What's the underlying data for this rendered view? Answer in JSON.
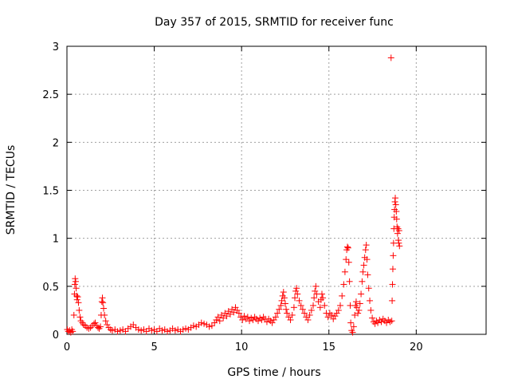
{
  "chart_data": {
    "type": "scatter",
    "title": "Day 357 of 2015, SRMTID for receiver func",
    "xlabel": "GPS time / hours",
    "ylabel": "SRMTID / TECUs",
    "xlim": [
      0,
      24
    ],
    "ylim": [
      0,
      3
    ],
    "xticks": [
      0,
      5,
      10,
      15,
      20
    ],
    "yticks": [
      0,
      0.5,
      1,
      1.5,
      2,
      2.5,
      3
    ],
    "xtick_labels": [
      "0",
      "5",
      "10",
      "15",
      "20"
    ],
    "ytick_labels": [
      "0",
      "0.5",
      "1",
      "1.5",
      "2",
      "2.5",
      "3"
    ],
    "grid": true,
    "marker": "plus",
    "color": "#ff0000",
    "series": [
      {
        "name": "SRMTID",
        "points": [
          [
            0.02,
            0.05
          ],
          [
            0.08,
            0.03
          ],
          [
            0.15,
            0.04
          ],
          [
            0.22,
            0.02
          ],
          [
            0.28,
            0.05
          ],
          [
            0.33,
            0.03
          ],
          [
            0.4,
            0.2
          ],
          [
            0.43,
            0.42
          ],
          [
            0.45,
            0.52
          ],
          [
            0.47,
            0.58
          ],
          [
            0.5,
            0.55
          ],
          [
            0.53,
            0.48
          ],
          [
            0.56,
            0.4
          ],
          [
            0.58,
            0.36
          ],
          [
            0.62,
            0.39
          ],
          [
            0.66,
            0.33
          ],
          [
            0.7,
            0.25
          ],
          [
            0.75,
            0.18
          ],
          [
            0.8,
            0.14
          ],
          [
            0.88,
            0.12
          ],
          [
            0.95,
            0.1
          ],
          [
            1.05,
            0.09
          ],
          [
            1.15,
            0.07
          ],
          [
            1.25,
            0.06
          ],
          [
            1.35,
            0.07
          ],
          [
            1.45,
            0.09
          ],
          [
            1.55,
            0.11
          ],
          [
            1.62,
            0.12
          ],
          [
            1.7,
            0.09
          ],
          [
            1.78,
            0.07
          ],
          [
            1.85,
            0.06
          ],
          [
            1.92,
            0.08
          ],
          [
            1.96,
            0.2
          ],
          [
            2.0,
            0.34
          ],
          [
            2.03,
            0.38
          ],
          [
            2.06,
            0.33
          ],
          [
            2.1,
            0.27
          ],
          [
            2.15,
            0.2
          ],
          [
            2.22,
            0.14
          ],
          [
            2.3,
            0.1
          ],
          [
            2.4,
            0.07
          ],
          [
            2.5,
            0.05
          ],
          [
            2.6,
            0.04
          ],
          [
            2.75,
            0.05
          ],
          [
            2.9,
            0.03
          ],
          [
            3.05,
            0.04
          ],
          [
            3.2,
            0.05
          ],
          [
            3.35,
            0.03
          ],
          [
            3.5,
            0.06
          ],
          [
            3.65,
            0.08
          ],
          [
            3.8,
            0.1
          ],
          [
            3.95,
            0.07
          ],
          [
            4.1,
            0.05
          ],
          [
            4.25,
            0.04
          ],
          [
            4.4,
            0.05
          ],
          [
            4.55,
            0.03
          ],
          [
            4.7,
            0.06
          ],
          [
            4.85,
            0.04
          ],
          [
            5.0,
            0.05
          ],
          [
            5.15,
            0.03
          ],
          [
            5.3,
            0.06
          ],
          [
            5.45,
            0.04
          ],
          [
            5.6,
            0.05
          ],
          [
            5.75,
            0.03
          ],
          [
            5.9,
            0.04
          ],
          [
            6.05,
            0.06
          ],
          [
            6.2,
            0.04
          ],
          [
            6.35,
            0.05
          ],
          [
            6.5,
            0.03
          ],
          [
            6.65,
            0.05
          ],
          [
            6.8,
            0.06
          ],
          [
            6.95,
            0.05
          ],
          [
            7.1,
            0.07
          ],
          [
            7.25,
            0.09
          ],
          [
            7.4,
            0.08
          ],
          [
            7.55,
            0.1
          ],
          [
            7.7,
            0.12
          ],
          [
            7.85,
            0.11
          ],
          [
            8.0,
            0.1
          ],
          [
            8.15,
            0.08
          ],
          [
            8.3,
            0.09
          ],
          [
            8.45,
            0.12
          ],
          [
            8.55,
            0.15
          ],
          [
            8.65,
            0.18
          ],
          [
            8.75,
            0.14
          ],
          [
            8.85,
            0.2
          ],
          [
            8.95,
            0.17
          ],
          [
            9.05,
            0.22
          ],
          [
            9.15,
            0.19
          ],
          [
            9.25,
            0.24
          ],
          [
            9.35,
            0.21
          ],
          [
            9.45,
            0.26
          ],
          [
            9.55,
            0.23
          ],
          [
            9.65,
            0.28
          ],
          [
            9.75,
            0.25
          ],
          [
            9.85,
            0.22
          ],
          [
            9.95,
            0.18
          ],
          [
            10.05,
            0.15
          ],
          [
            10.15,
            0.19
          ],
          [
            10.25,
            0.16
          ],
          [
            10.35,
            0.18
          ],
          [
            10.45,
            0.14
          ],
          [
            10.55,
            0.17
          ],
          [
            10.65,
            0.15
          ],
          [
            10.75,
            0.18
          ],
          [
            10.85,
            0.16
          ],
          [
            10.95,
            0.14
          ],
          [
            11.05,
            0.17
          ],
          [
            11.15,
            0.15
          ],
          [
            11.25,
            0.18
          ],
          [
            11.35,
            0.16
          ],
          [
            11.45,
            0.13
          ],
          [
            11.55,
            0.16
          ],
          [
            11.65,
            0.14
          ],
          [
            11.75,
            0.12
          ],
          [
            11.85,
            0.15
          ],
          [
            11.95,
            0.18
          ],
          [
            12.05,
            0.22
          ],
          [
            12.15,
            0.26
          ],
          [
            12.25,
            0.3
          ],
          [
            12.3,
            0.35
          ],
          [
            12.35,
            0.4
          ],
          [
            12.4,
            0.44
          ],
          [
            12.45,
            0.38
          ],
          [
            12.5,
            0.32
          ],
          [
            12.55,
            0.26
          ],
          [
            12.6,
            0.22
          ],
          [
            12.7,
            0.18
          ],
          [
            12.8,
            0.15
          ],
          [
            12.9,
            0.2
          ],
          [
            13.0,
            0.28
          ],
          [
            13.05,
            0.38
          ],
          [
            13.1,
            0.45
          ],
          [
            13.15,
            0.48
          ],
          [
            13.2,
            0.42
          ],
          [
            13.3,
            0.35
          ],
          [
            13.4,
            0.3
          ],
          [
            13.5,
            0.26
          ],
          [
            13.6,
            0.22
          ],
          [
            13.7,
            0.18
          ],
          [
            13.8,
            0.15
          ],
          [
            13.9,
            0.2
          ],
          [
            14.0,
            0.25
          ],
          [
            14.1,
            0.3
          ],
          [
            14.15,
            0.38
          ],
          [
            14.2,
            0.45
          ],
          [
            14.25,
            0.5
          ],
          [
            14.3,
            0.42
          ],
          [
            14.4,
            0.34
          ],
          [
            14.5,
            0.28
          ],
          [
            14.55,
            0.36
          ],
          [
            14.6,
            0.42
          ],
          [
            14.65,
            0.38
          ],
          [
            14.75,
            0.3
          ],
          [
            14.85,
            0.22
          ],
          [
            14.95,
            0.18
          ],
          [
            15.05,
            0.22
          ],
          [
            15.15,
            0.2
          ],
          [
            15.25,
            0.16
          ],
          [
            15.35,
            0.19
          ],
          [
            15.45,
            0.22
          ],
          [
            15.55,
            0.25
          ],
          [
            15.65,
            0.3
          ],
          [
            15.75,
            0.4
          ],
          [
            15.85,
            0.52
          ],
          [
            15.92,
            0.65
          ],
          [
            15.98,
            0.78
          ],
          [
            16.02,
            0.88
          ],
          [
            16.06,
            0.91
          ],
          [
            16.1,
            0.9
          ],
          [
            16.14,
            0.75
          ],
          [
            16.18,
            0.55
          ],
          [
            16.22,
            0.3
          ],
          [
            16.25,
            0.12
          ],
          [
            16.3,
            0.04
          ],
          [
            16.36,
            0.02
          ],
          [
            16.42,
            0.08
          ],
          [
            16.48,
            0.2
          ],
          [
            16.52,
            0.3
          ],
          [
            16.56,
            0.34
          ],
          [
            16.6,
            0.28
          ],
          [
            16.66,
            0.22
          ],
          [
            16.72,
            0.25
          ],
          [
            16.78,
            0.32
          ],
          [
            16.84,
            0.42
          ],
          [
            16.9,
            0.55
          ],
          [
            16.95,
            0.65
          ],
          [
            17.0,
            0.72
          ],
          [
            17.05,
            0.8
          ],
          [
            17.1,
            0.88
          ],
          [
            17.14,
            0.93
          ],
          [
            17.18,
            0.78
          ],
          [
            17.22,
            0.62
          ],
          [
            17.28,
            0.48
          ],
          [
            17.34,
            0.35
          ],
          [
            17.4,
            0.25
          ],
          [
            17.48,
            0.17
          ],
          [
            17.56,
            0.13
          ],
          [
            17.64,
            0.11
          ],
          [
            17.72,
            0.14
          ],
          [
            17.8,
            0.12
          ],
          [
            17.9,
            0.15
          ],
          [
            18.0,
            0.13
          ],
          [
            18.1,
            0.16
          ],
          [
            18.2,
            0.14
          ],
          [
            18.3,
            0.12
          ],
          [
            18.4,
            0.15
          ],
          [
            18.5,
            0.13
          ],
          [
            18.56,
            2.88
          ],
          [
            18.6,
            0.14
          ],
          [
            18.62,
            0.35
          ],
          [
            18.64,
            0.52
          ],
          [
            18.66,
            0.68
          ],
          [
            18.68,
            0.82
          ],
          [
            18.7,
            0.95
          ],
          [
            18.72,
            1.1
          ],
          [
            18.74,
            1.22
          ],
          [
            18.76,
            1.3
          ],
          [
            18.78,
            1.38
          ],
          [
            18.8,
            1.42
          ],
          [
            18.83,
            1.35
          ],
          [
            18.86,
            1.28
          ],
          [
            18.88,
            1.2
          ],
          [
            18.9,
            1.12
          ],
          [
            18.93,
            1.05
          ],
          [
            18.96,
            1.1
          ],
          [
            18.98,
            0.98
          ],
          [
            19.0,
            0.95
          ],
          [
            19.02,
            1.08
          ],
          [
            19.04,
            0.92
          ]
        ]
      }
    ]
  }
}
